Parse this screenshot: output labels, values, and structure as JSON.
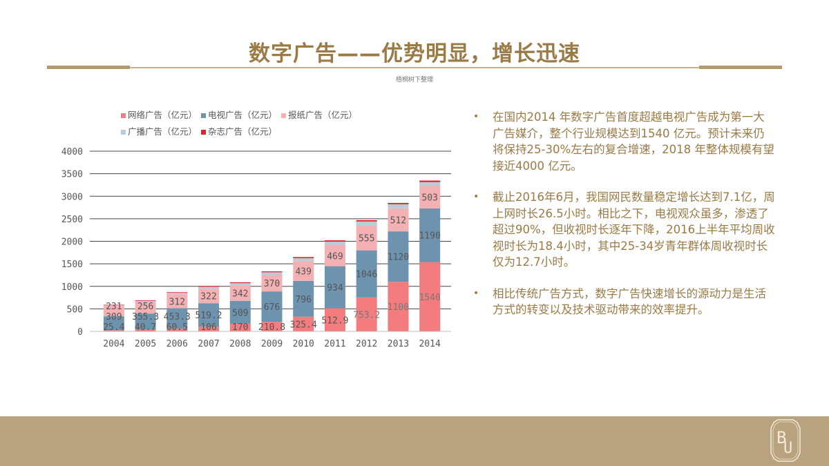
{
  "header": {
    "title": "数字广告——优势明显，增长迅速",
    "subtitle": "梧桐树下整理"
  },
  "bullets": [
    "在国内2014 年数字广告首度超越电视广告成为第一大广告媒介，整个行业规模达到1540 亿元。预计未来仍将保持25-30%左右的复合增速，2018 年整体规模有望接近4000 亿元。",
    "截止2016年6月，我国网民数量稳定增长达到7.1亿，周上网时长26.5小时。相比之下，电视观众虽多，渗透了超过90%，但收视时长逐年下降，2016上半年平均周收视时长为18.4小时，其中25-34岁青年群体周收视时长仅为12.7小时。",
    "相比传统广告方式，数字广告快速增长的源动力是生活方式的转变以及技术驱动带来的效率提升。"
  ],
  "colors": {
    "accent": "#9a7a45",
    "band": "#b9a27e"
  },
  "logo": {
    "text": "BU"
  },
  "chart_data": {
    "type": "bar",
    "stacked": true,
    "categories": [
      "2004",
      "2005",
      "2006",
      "2007",
      "2008",
      "2009",
      "2010",
      "2011",
      "2012",
      "2013",
      "2014"
    ],
    "series": [
      {
        "name": "网络广告（亿元）",
        "color": "#f27c7e",
        "labeled": true,
        "labels": [
          "25.4",
          "40.7",
          "60.5",
          "106",
          "170",
          "210.8",
          "325.4",
          "512.9",
          "753.2",
          "1100",
          "1540"
        ],
        "values": [
          25.4,
          40.7,
          60.5,
          106,
          170,
          210.8,
          325.4,
          512.9,
          753.2,
          1100,
          1540
        ]
      },
      {
        "name": "电视广告（亿元）",
        "color": "#6e93ae",
        "labeled": true,
        "labels": [
          "309",
          "355.3",
          "453.3",
          "519.2",
          "509",
          "676",
          "796",
          "934",
          "1046",
          "1120",
          "1190"
        ],
        "values": [
          309,
          355.3,
          453.3,
          519.2,
          509,
          676,
          796,
          934,
          1046,
          1120,
          1190
        ]
      },
      {
        "name": "报纸广告（亿元）",
        "color": "#f4b1b4",
        "labeled": true,
        "labels": [
          "231",
          "256",
          "312",
          "322",
          "342",
          "370",
          "439",
          "469",
          "555",
          "512",
          "503"
        ],
        "values": [
          231,
          256,
          312,
          322,
          342,
          370,
          439,
          469,
          555,
          512,
          503
        ]
      },
      {
        "name": "广播广告（亿元）",
        "color": "#b9ccd9",
        "labeled": false,
        "values": [
          15,
          25,
          30,
          45,
          50,
          55,
          65,
          75,
          85,
          90,
          80
        ]
      },
      {
        "name": "杂志广告（亿元）",
        "color": "#e3222b",
        "labeled": false,
        "values": [
          10,
          13,
          14,
          18,
          19,
          20,
          25,
          30,
          30,
          30,
          35
        ]
      }
    ],
    "yticks": [
      "0",
      "500",
      "1000",
      "1500",
      "2000",
      "2500",
      "3000",
      "3500",
      "4000"
    ],
    "ylim": [
      0,
      4000
    ],
    "grid": true,
    "legend": "top",
    "xlabel": "",
    "ylabel": "",
    "title": ""
  }
}
